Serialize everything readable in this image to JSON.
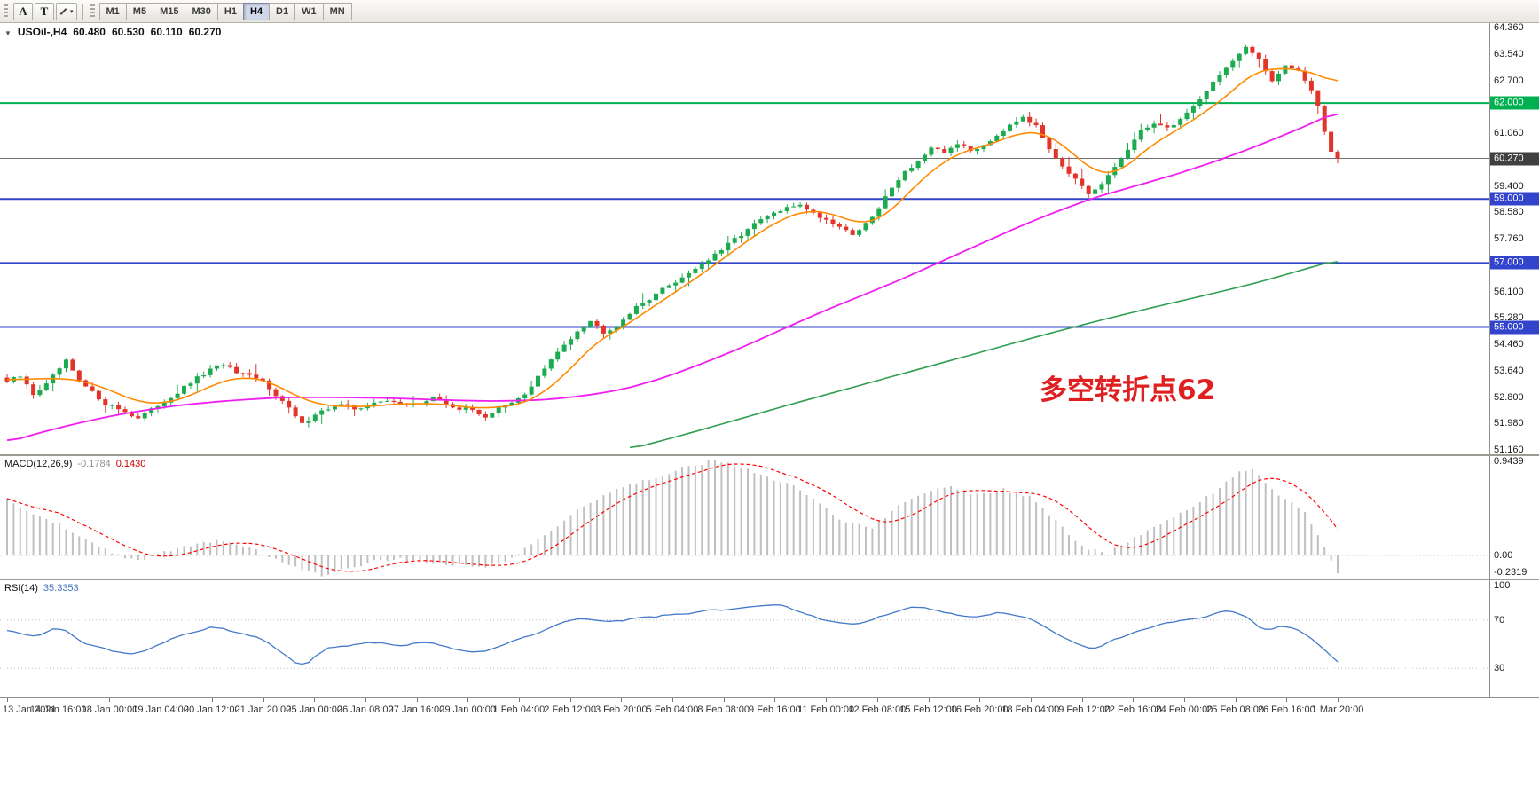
{
  "toolbar": {
    "tool_buttons": [
      {
        "label": "A"
      },
      {
        "label": "T"
      }
    ],
    "drawing_dropdown_caret": "▾",
    "timeframes": [
      "M1",
      "M5",
      "M15",
      "M30",
      "H1",
      "H4",
      "D1",
      "W1",
      "MN"
    ],
    "active_timeframe": "H4"
  },
  "chart": {
    "header": {
      "collapse_icon": "▼",
      "symbol_period": "USOil-,H4",
      "open": "60.480",
      "high": "60.530",
      "low": "60.110",
      "close": "60.270"
    },
    "annotation": {
      "text": "多空转折点62",
      "color": "#e02020"
    },
    "price_axis": {
      "ticks": [
        "64.360",
        "63.540",
        "62.700",
        "61.060",
        "59.400",
        "58.580",
        "57.760",
        "56.100",
        "55.280",
        "54.460",
        "53.640",
        "52.800",
        "51.980",
        "51.160"
      ],
      "badges": [
        {
          "label": "62.000",
          "color": "#00b050"
        },
        {
          "label": "60.270",
          "color": "#404040"
        },
        {
          "label": "59.000",
          "color": "#3344cc"
        },
        {
          "label": "57.000",
          "color": "#3344cc"
        },
        {
          "label": "55.000",
          "color": "#3344cc"
        }
      ]
    },
    "time_axis": {
      "labels": [
        "13 Jan 2021",
        "14 Jan 16:00",
        "18 Jan 00:00",
        "19 Jan 04:00",
        "20 Jan 12:00",
        "21 Jan 20:00",
        "25 Jan 00:00",
        "26 Jan 08:00",
        "27 Jan 16:00",
        "29 Jan 00:00",
        "1 Feb 04:00",
        "2 Feb 12:00",
        "3 Feb 20:00",
        "5 Feb 04:00",
        "8 Feb 08:00",
        "9 Feb 16:00",
        "11 Feb 00:00",
        "12 Feb 08:00",
        "15 Feb 12:00",
        "16 Feb 20:00",
        "18 Feb 04:00",
        "19 Feb 12:00",
        "22 Feb 16:00",
        "24 Feb 00:00",
        "25 Feb 08:00",
        "26 Feb 16:00",
        "1 Mar 20:00"
      ]
    }
  },
  "macd_panel": {
    "label": "MACD(12,26,9)",
    "main_value": "-0.1784",
    "signal_value": "0.1430",
    "scale_top": "0.9439",
    "scale_zero": "0.00",
    "scale_bottom": "-0.2319"
  },
  "rsi_panel": {
    "label": "RSI(14)",
    "value": "35.3353",
    "scale_top": "100",
    "scale_upper": "70",
    "scale_lower": "30"
  },
  "colors": {
    "candle_up": "#1cab4f",
    "candle_down": "#e3342a",
    "ma_fast": "#ff8a00",
    "ma_mid": "#f01ef0",
    "ma_slow": "#2f9e4e",
    "hline_green": "#00b050",
    "hline_blue": "#3344cc",
    "bid_line": "#707070",
    "macd_bar": "#c0c0c0",
    "macd_signal": "#ff0000",
    "rsi_line": "#4379c9",
    "annotation": "#e02020"
  },
  "chart_data": {
    "type": "candlestick",
    "symbol": "USOil",
    "period": "H4",
    "bars": 204,
    "price_range": [
      51.16,
      64.36
    ],
    "last_ohlc": {
      "open": 60.48,
      "high": 60.53,
      "low": 60.11,
      "close": 60.27
    },
    "current_price": 60.27,
    "hlines": [
      {
        "price": 62.0,
        "color": "#00b050",
        "width": 2
      },
      {
        "price": 59.0,
        "color": "#3344cc",
        "width": 2
      },
      {
        "price": 57.0,
        "color": "#3344cc",
        "width": 2
      },
      {
        "price": 55.0,
        "color": "#3344cc",
        "width": 2
      }
    ],
    "close_path_anchors": [
      [
        0,
        53.3
      ],
      [
        2,
        53.45
      ],
      [
        4,
        52.9
      ],
      [
        6,
        53.2
      ],
      [
        8,
        53.7
      ],
      [
        9,
        53.92
      ],
      [
        11,
        53.3
      ],
      [
        13,
        52.95
      ],
      [
        15,
        52.6
      ],
      [
        17,
        52.45
      ],
      [
        19,
        52.25
      ],
      [
        20,
        52.15
      ],
      [
        22,
        52.4
      ],
      [
        23,
        52.55
      ],
      [
        25,
        52.8
      ],
      [
        27,
        53.1
      ],
      [
        29,
        53.4
      ],
      [
        31,
        53.65
      ],
      [
        33,
        53.85
      ],
      [
        35,
        53.55
      ],
      [
        37,
        53.45
      ],
      [
        39,
        53.3
      ],
      [
        41,
        52.9
      ],
      [
        43,
        52.45
      ],
      [
        45,
        51.95
      ],
      [
        47,
        52.3
      ],
      [
        49,
        52.45
      ],
      [
        51,
        52.55
      ],
      [
        53,
        52.45
      ],
      [
        55,
        52.55
      ],
      [
        57,
        52.65
      ],
      [
        59,
        52.7
      ],
      [
        61,
        52.55
      ],
      [
        63,
        52.6
      ],
      [
        65,
        52.8
      ],
      [
        67,
        52.6
      ],
      [
        69,
        52.45
      ],
      [
        71,
        52.4
      ],
      [
        73,
        52.2
      ],
      [
        75,
        52.45
      ],
      [
        77,
        52.6
      ],
      [
        79,
        52.9
      ],
      [
        81,
        53.45
      ],
      [
        83,
        53.95
      ],
      [
        85,
        54.45
      ],
      [
        87,
        54.9
      ],
      [
        89,
        55.2
      ],
      [
        91,
        54.85
      ],
      [
        93,
        55.05
      ],
      [
        95,
        55.45
      ],
      [
        97,
        55.75
      ],
      [
        99,
        56.05
      ],
      [
        101,
        56.3
      ],
      [
        103,
        56.55
      ],
      [
        105,
        56.85
      ],
      [
        107,
        57.1
      ],
      [
        109,
        57.4
      ],
      [
        111,
        57.75
      ],
      [
        113,
        58.05
      ],
      [
        115,
        58.35
      ],
      [
        117,
        58.55
      ],
      [
        119,
        58.7
      ],
      [
        121,
        58.85
      ],
      [
        123,
        58.55
      ],
      [
        125,
        58.35
      ],
      [
        127,
        58.15
      ],
      [
        129,
        57.9
      ],
      [
        131,
        58.2
      ],
      [
        133,
        58.7
      ],
      [
        135,
        59.4
      ],
      [
        137,
        59.85
      ],
      [
        139,
        60.2
      ],
      [
        141,
        60.55
      ],
      [
        143,
        60.45
      ],
      [
        145,
        60.75
      ],
      [
        147,
        60.5
      ],
      [
        149,
        60.7
      ],
      [
        151,
        61.0
      ],
      [
        153,
        61.35
      ],
      [
        155,
        61.6
      ],
      [
        157,
        61.25
      ],
      [
        159,
        60.6
      ],
      [
        161,
        60.05
      ],
      [
        163,
        59.6
      ],
      [
        165,
        59.1
      ],
      [
        167,
        59.45
      ],
      [
        169,
        60.0
      ],
      [
        171,
        60.55
      ],
      [
        173,
        61.1
      ],
      [
        175,
        61.4
      ],
      [
        177,
        61.2
      ],
      [
        179,
        61.5
      ],
      [
        181,
        61.9
      ],
      [
        183,
        62.4
      ],
      [
        185,
        62.9
      ],
      [
        187,
        63.3
      ],
      [
        189,
        63.7
      ],
      [
        191,
        63.4
      ],
      [
        193,
        62.7
      ],
      [
        195,
        63.2
      ],
      [
        197,
        63.0
      ],
      [
        198,
        62.7
      ],
      [
        199,
        62.4
      ],
      [
        200,
        61.9
      ],
      [
        201,
        61.1
      ],
      [
        202,
        60.48
      ],
      [
        203,
        60.27
      ]
    ],
    "ma_fast_anchors": [
      [
        0,
        53.35
      ],
      [
        8,
        53.4
      ],
      [
        12,
        53.3
      ],
      [
        16,
        53.0
      ],
      [
        20,
        52.65
      ],
      [
        24,
        52.6
      ],
      [
        28,
        52.85
      ],
      [
        32,
        53.25
      ],
      [
        36,
        53.45
      ],
      [
        40,
        53.3
      ],
      [
        44,
        52.85
      ],
      [
        48,
        52.55
      ],
      [
        54,
        52.5
      ],
      [
        60,
        52.6
      ],
      [
        66,
        52.6
      ],
      [
        72,
        52.45
      ],
      [
        78,
        52.55
      ],
      [
        82,
        52.95
      ],
      [
        86,
        53.7
      ],
      [
        90,
        54.55
      ],
      [
        94,
        55.0
      ],
      [
        98,
        55.55
      ],
      [
        102,
        56.1
      ],
      [
        106,
        56.65
      ],
      [
        110,
        57.25
      ],
      [
        114,
        57.85
      ],
      [
        118,
        58.35
      ],
      [
        122,
        58.65
      ],
      [
        126,
        58.55
      ],
      [
        130,
        58.2
      ],
      [
        134,
        58.45
      ],
      [
        138,
        59.3
      ],
      [
        142,
        60.05
      ],
      [
        146,
        60.5
      ],
      [
        150,
        60.7
      ],
      [
        154,
        61.05
      ],
      [
        158,
        61.1
      ],
      [
        162,
        60.55
      ],
      [
        166,
        59.8
      ],
      [
        170,
        59.85
      ],
      [
        174,
        60.6
      ],
      [
        178,
        61.1
      ],
      [
        182,
        61.6
      ],
      [
        186,
        62.2
      ],
      [
        190,
        62.95
      ],
      [
        194,
        63.1
      ],
      [
        197,
        63.05
      ],
      [
        200,
        62.9
      ],
      [
        203,
        62.6
      ]
    ],
    "ma_mid_anchors": [
      [
        0,
        51.4
      ],
      [
        6,
        51.75
      ],
      [
        12,
        52.05
      ],
      [
        18,
        52.3
      ],
      [
        26,
        52.55
      ],
      [
        34,
        52.7
      ],
      [
        42,
        52.8
      ],
      [
        50,
        52.8
      ],
      [
        58,
        52.78
      ],
      [
        66,
        52.72
      ],
      [
        74,
        52.68
      ],
      [
        82,
        52.72
      ],
      [
        88,
        52.85
      ],
      [
        94,
        53.05
      ],
      [
        100,
        53.4
      ],
      [
        106,
        53.85
      ],
      [
        112,
        54.35
      ],
      [
        118,
        54.9
      ],
      [
        124,
        55.45
      ],
      [
        130,
        55.95
      ],
      [
        136,
        56.45
      ],
      [
        142,
        57.0
      ],
      [
        148,
        57.55
      ],
      [
        154,
        58.1
      ],
      [
        160,
        58.6
      ],
      [
        166,
        59.05
      ],
      [
        172,
        59.4
      ],
      [
        178,
        59.75
      ],
      [
        184,
        60.15
      ],
      [
        190,
        60.6
      ],
      [
        196,
        61.1
      ],
      [
        200,
        61.45
      ],
      [
        203,
        61.75
      ]
    ],
    "ma_slow_anchors": [
      [
        95,
        51.18
      ],
      [
        103,
        51.62
      ],
      [
        111,
        52.08
      ],
      [
        119,
        52.55
      ],
      [
        127,
        53.0
      ],
      [
        135,
        53.45
      ],
      [
        143,
        53.9
      ],
      [
        151,
        54.35
      ],
      [
        159,
        54.8
      ],
      [
        167,
        55.22
      ],
      [
        175,
        55.62
      ],
      [
        183,
        56.0
      ],
      [
        191,
        56.4
      ],
      [
        197,
        56.75
      ],
      [
        203,
        57.1
      ]
    ],
    "macd": {
      "params": "12,26,9",
      "range": [
        -0.2319,
        0.9439
      ],
      "last_main": -0.1784,
      "last_signal": 0.143,
      "anchors": [
        [
          0,
          0.55
        ],
        [
          4,
          0.42
        ],
        [
          8,
          0.3
        ],
        [
          12,
          0.15
        ],
        [
          16,
          0.02
        ],
        [
          20,
          -0.06
        ],
        [
          24,
          0.03
        ],
        [
          28,
          0.1
        ],
        [
          32,
          0.15
        ],
        [
          36,
          0.1
        ],
        [
          40,
          0.0
        ],
        [
          44,
          -0.12
        ],
        [
          48,
          -0.2
        ],
        [
          52,
          -0.12
        ],
        [
          56,
          -0.06
        ],
        [
          60,
          -0.04
        ],
        [
          64,
          -0.06
        ],
        [
          68,
          -0.09
        ],
        [
          72,
          -0.12
        ],
        [
          76,
          -0.05
        ],
        [
          80,
          0.1
        ],
        [
          84,
          0.3
        ],
        [
          88,
          0.5
        ],
        [
          92,
          0.62
        ],
        [
          96,
          0.72
        ],
        [
          100,
          0.8
        ],
        [
          104,
          0.88
        ],
        [
          108,
          0.94
        ],
        [
          112,
          0.88
        ],
        [
          116,
          0.78
        ],
        [
          120,
          0.68
        ],
        [
          124,
          0.52
        ],
        [
          128,
          0.32
        ],
        [
          132,
          0.28
        ],
        [
          136,
          0.48
        ],
        [
          140,
          0.62
        ],
        [
          144,
          0.68
        ],
        [
          148,
          0.6
        ],
        [
          152,
          0.65
        ],
        [
          156,
          0.58
        ],
        [
          160,
          0.35
        ],
        [
          164,
          0.08
        ],
        [
          168,
          0.02
        ],
        [
          172,
          0.18
        ],
        [
          176,
          0.32
        ],
        [
          180,
          0.46
        ],
        [
          184,
          0.62
        ],
        [
          188,
          0.82
        ],
        [
          190,
          0.86
        ],
        [
          192,
          0.72
        ],
        [
          194,
          0.58
        ],
        [
          196,
          0.52
        ],
        [
          198,
          0.42
        ],
        [
          200,
          0.2
        ],
        [
          202,
          -0.05
        ],
        [
          203,
          -0.1784
        ]
      ]
    },
    "rsi": {
      "period": 14,
      "last": 35.3353,
      "levels": [
        30,
        70
      ],
      "anchors": [
        [
          0,
          62
        ],
        [
          4,
          55
        ],
        [
          8,
          64
        ],
        [
          12,
          50
        ],
        [
          16,
          45
        ],
        [
          20,
          42
        ],
        [
          24,
          52
        ],
        [
          28,
          60
        ],
        [
          32,
          65
        ],
        [
          36,
          58
        ],
        [
          40,
          52
        ],
        [
          44,
          36
        ],
        [
          45,
          29
        ],
        [
          48,
          45
        ],
        [
          52,
          50
        ],
        [
          56,
          52
        ],
        [
          60,
          48
        ],
        [
          64,
          52
        ],
        [
          68,
          47
        ],
        [
          72,
          44
        ],
        [
          76,
          50
        ],
        [
          80,
          58
        ],
        [
          84,
          66
        ],
        [
          88,
          72
        ],
        [
          92,
          68
        ],
        [
          96,
          71
        ],
        [
          100,
          74
        ],
        [
          104,
          76
        ],
        [
          108,
          78
        ],
        [
          112,
          80
        ],
        [
          116,
          82
        ],
        [
          118,
          84
        ],
        [
          120,
          78
        ],
        [
          124,
          72
        ],
        [
          128,
          65
        ],
        [
          132,
          70
        ],
        [
          136,
          78
        ],
        [
          140,
          80
        ],
        [
          144,
          76
        ],
        [
          148,
          72
        ],
        [
          152,
          76
        ],
        [
          156,
          70
        ],
        [
          160,
          58
        ],
        [
          164,
          48
        ],
        [
          166,
          45
        ],
        [
          168,
          52
        ],
        [
          172,
          60
        ],
        [
          176,
          66
        ],
        [
          180,
          70
        ],
        [
          184,
          74
        ],
        [
          186,
          78
        ],
        [
          188,
          75
        ],
        [
          190,
          70
        ],
        [
          192,
          60
        ],
        [
          194,
          66
        ],
        [
          196,
          62
        ],
        [
          198,
          58
        ],
        [
          200,
          50
        ],
        [
          202,
          40
        ],
        [
          203,
          35.3353
        ]
      ]
    }
  }
}
